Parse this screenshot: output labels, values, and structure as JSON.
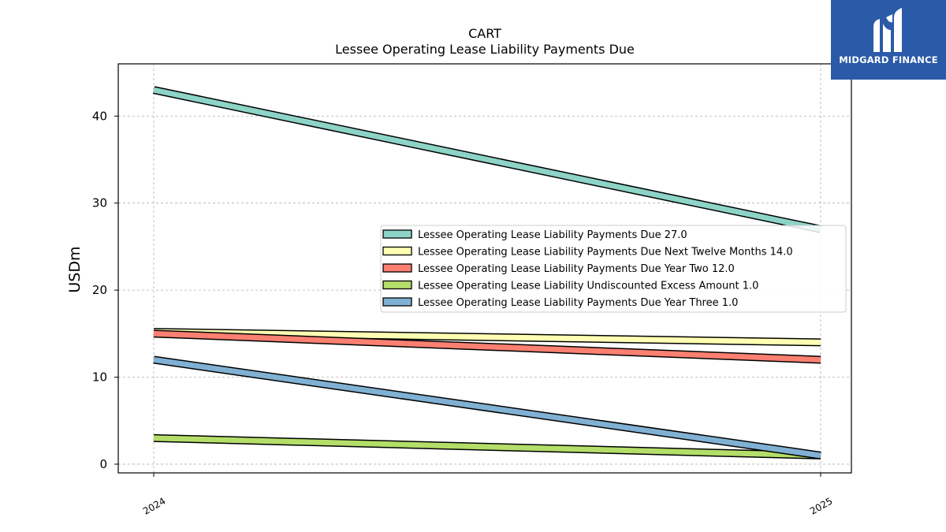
{
  "chart_data": {
    "type": "line",
    "title": "CART",
    "subtitle": "Lessee Operating Lease Liability Payments Due",
    "xlabel": "",
    "ylabel": "USDm",
    "categories": [
      "2024",
      "2025"
    ],
    "ylim": [
      -1,
      46
    ],
    "yticks": [
      0,
      10,
      20,
      30,
      40
    ],
    "grid": true,
    "legend_position": "center-right",
    "series": [
      {
        "name": "Lessee Operating Lease Liability Payments Due",
        "legend_label": "Lessee Operating Lease Liability Payments Due  27.0",
        "values": [
          43.0,
          27.0
        ],
        "color": "#8dd3c7"
      },
      {
        "name": "Lessee Operating Lease Liability Payments Due Next Twelve Months",
        "legend_label": "Lessee Operating Lease Liability Payments Due Next Twelve Months  14.0",
        "values": [
          15.2,
          14.0
        ],
        "color": "#ffffb3"
      },
      {
        "name": "Lessee Operating Lease Liability Payments Due Year Two",
        "legend_label": "Lessee Operating Lease Liability Payments Due Year Two  12.0",
        "values": [
          15.0,
          12.0
        ],
        "color": "#fb8072"
      },
      {
        "name": "Lessee Operating Lease Liability Undiscounted Excess Amount",
        "legend_label": "Lessee Operating Lease Liability Undiscounted Excess Amount  1.0",
        "values": [
          3.0,
          1.0
        ],
        "color": "#b3de69"
      },
      {
        "name": "Lessee Operating Lease Liability Payments Due Year Three",
        "legend_label": "Lessee Operating Lease Liability Payments Due Year Three  1.0",
        "values": [
          12.0,
          1.0
        ],
        "color": "#80b1d3"
      }
    ]
  },
  "logo": {
    "text": "MIDGARD FINANCE",
    "icon": "midgard-finance-logo-icon",
    "background": "#2b5aa9"
  }
}
